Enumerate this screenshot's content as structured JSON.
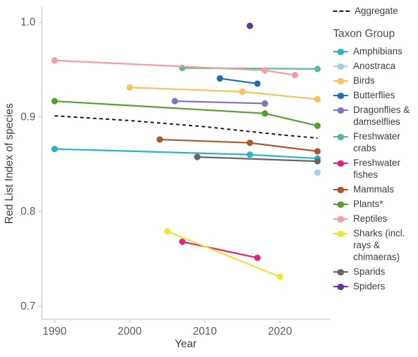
{
  "chart_data": {
    "type": "line",
    "title": "",
    "xlabel": "Year",
    "ylabel": "Red List Index of species",
    "xlim": [
      1988.3,
      2026.6
    ],
    "ylim": [
      0.686,
      1.0145
    ],
    "x_ticks": [
      1990,
      2000,
      2010,
      2020
    ],
    "y_ticks": [
      1.0,
      0.9,
      0.8,
      0.7
    ],
    "grid": false,
    "legend_position": "right",
    "aggregate": {
      "name": "Aggregate",
      "style": "dashed",
      "color": "#1a1a1a",
      "points": [
        [
          1990,
          0.901
        ],
        [
          2000,
          0.896
        ],
        [
          2010,
          0.8895
        ],
        [
          2020,
          0.881
        ],
        [
          2025,
          0.8775
        ]
      ]
    },
    "series": [
      {
        "name": "Amphibians",
        "color": "#29b4c8",
        "points": [
          [
            1990,
            0.866
          ],
          [
            2016,
            0.86
          ],
          [
            2025,
            0.856
          ]
        ]
      },
      {
        "name": "Anostraca",
        "color": "#a6cee3",
        "points": [
          [
            2025,
            0.841
          ]
        ]
      },
      {
        "name": "Birds",
        "color": "#f9c25e",
        "points": [
          [
            2000,
            0.931
          ],
          [
            2015,
            0.9265
          ],
          [
            2025,
            0.9185
          ]
        ]
      },
      {
        "name": "Butterflies",
        "color": "#1f6eb5",
        "points": [
          [
            2012,
            0.9405
          ],
          [
            2017,
            0.935
          ]
        ]
      },
      {
        "name": "Dragonflies & damselflies",
        "color": "#7d73c1",
        "points": [
          [
            2006,
            0.9165
          ],
          [
            2018,
            0.914
          ]
        ]
      },
      {
        "name": "Freshwater crabs",
        "color": "#57bd8d",
        "points": [
          [
            2007,
            0.9515
          ],
          [
            2025,
            0.9505
          ]
        ]
      },
      {
        "name": "Freshwater fishes",
        "color": "#e0257e",
        "points": [
          [
            2007,
            0.768
          ],
          [
            2017,
            0.751
          ]
        ]
      },
      {
        "name": "Mammals",
        "color": "#af552b",
        "points": [
          [
            2004,
            0.876
          ],
          [
            2016,
            0.8725
          ],
          [
            2025,
            0.8635
          ]
        ]
      },
      {
        "name": "Plants*",
        "color": "#579e30",
        "points": [
          [
            1990,
            0.9165
          ],
          [
            2018,
            0.9035
          ],
          [
            2025,
            0.8905
          ]
        ]
      },
      {
        "name": "Reptiles",
        "color": "#f69ba1",
        "points": [
          [
            1990,
            0.9595
          ],
          [
            2018,
            0.949
          ],
          [
            2022,
            0.944
          ]
        ]
      },
      {
        "name": "Sharks (incl. rays & chimaeras)",
        "color": "#eae72e",
        "points": [
          [
            2005,
            0.779
          ],
          [
            2020,
            0.731
          ]
        ]
      },
      {
        "name": "Sparids",
        "color": "#656565",
        "points": [
          [
            2009,
            0.8575
          ],
          [
            2025,
            0.853
          ]
        ]
      },
      {
        "name": "Spiders",
        "color": "#63389e",
        "points": [
          [
            2016,
            0.996
          ]
        ]
      }
    ]
  },
  "axes": {
    "x_tick_labels": [
      "1990",
      "2000",
      "2010",
      "2020"
    ],
    "y_tick_labels": [
      "1.0",
      "0.9",
      "0.8",
      "0.7"
    ],
    "axis_color": "#c9c9c9"
  },
  "legend": {
    "aggregate_label": "Aggregate",
    "group_title": "Taxon Group",
    "items": [
      {
        "label": "Amphibians"
      },
      {
        "label": "Anostraca"
      },
      {
        "label": "Birds"
      },
      {
        "label": "Butterflies"
      },
      {
        "label": "Dragonflies &\ndamselflies"
      },
      {
        "label": "Freshwater\ncrabs"
      },
      {
        "label": "Freshwater\nfishes"
      },
      {
        "label": "Mammals"
      },
      {
        "label": "Plants*"
      },
      {
        "label": "Reptiles"
      },
      {
        "label": "Sharks (incl.\nrays &\nchimaeras)"
      },
      {
        "label": "Sparids"
      },
      {
        "label": "Spiders"
      }
    ]
  }
}
